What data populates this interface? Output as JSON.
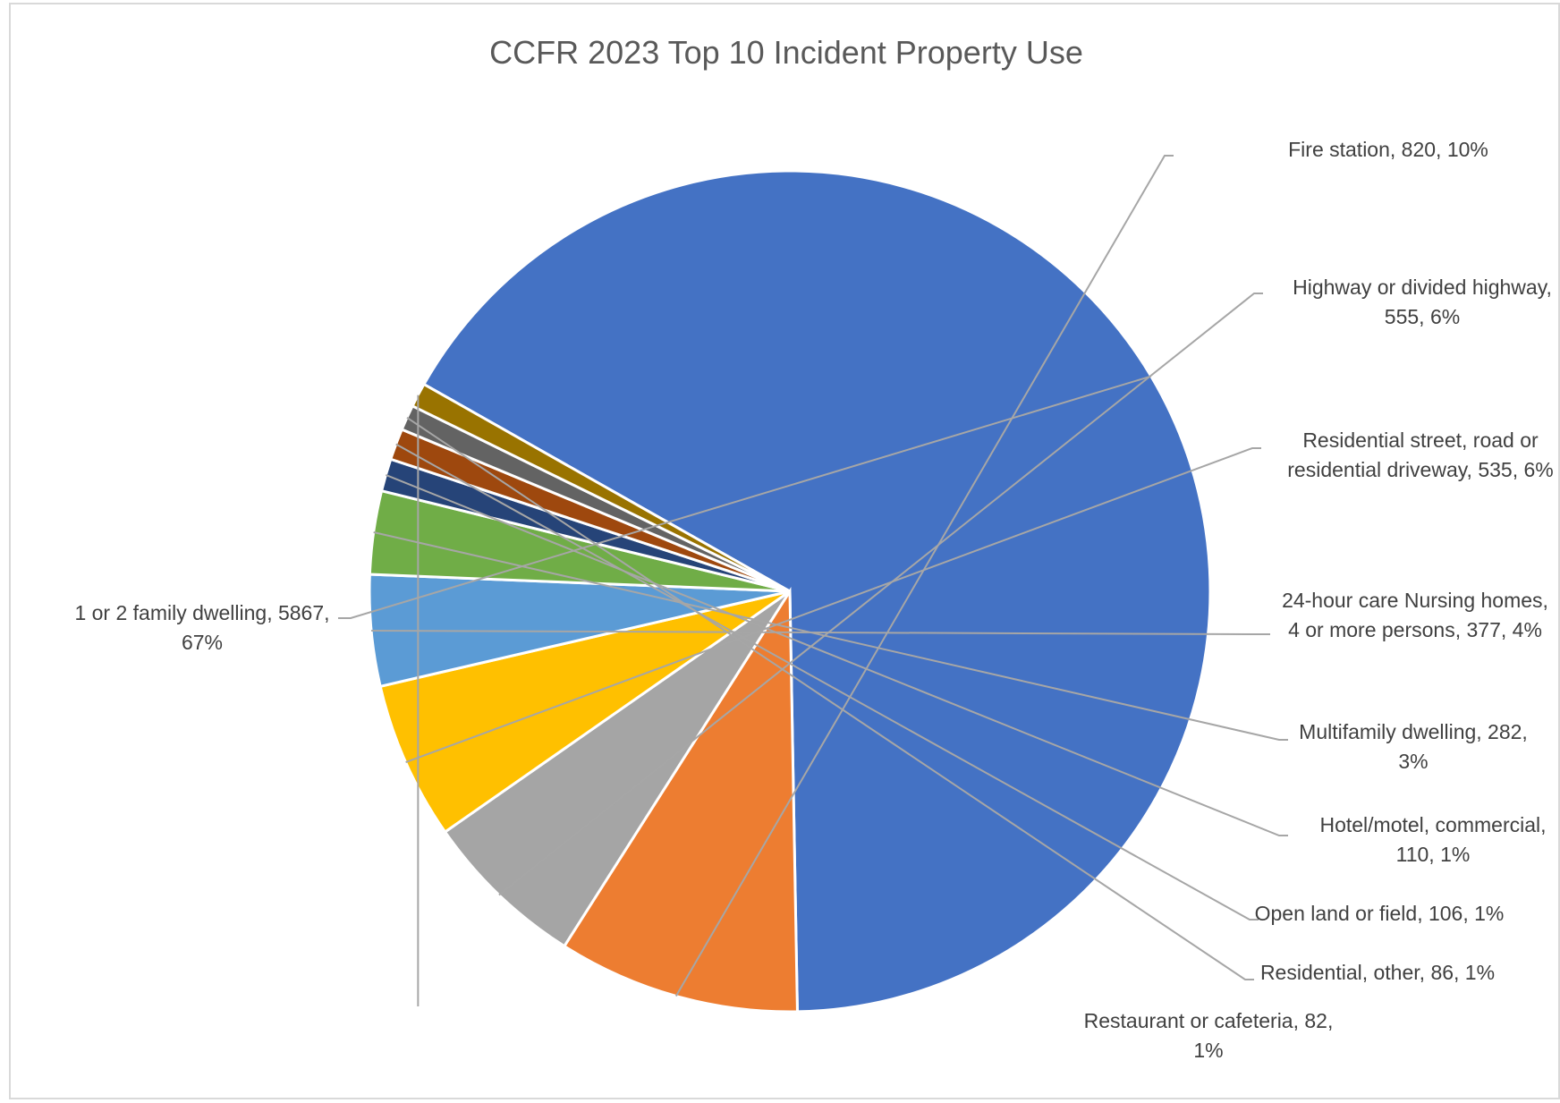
{
  "chart_data": {
    "type": "pie",
    "title": "CCFR 2023 Top 10 Incident Property Use",
    "legend": "none",
    "slices": [
      {
        "name": "1 or 2 family dwelling",
        "value": 5867,
        "percent": "67%",
        "color": "#4472C4",
        "label_lines": [
          "1 or 2 family dwelling, 5867,",
          "67%"
        ]
      },
      {
        "name": "Fire station",
        "value": 820,
        "percent": "10%",
        "color": "#ED7D31",
        "label_lines": [
          "Fire station, 820, 10%"
        ]
      },
      {
        "name": "Highway or divided highway",
        "value": 555,
        "percent": "6%",
        "color": "#A5A5A5",
        "label_lines": [
          "Highway or divided highway,",
          "555, 6%"
        ]
      },
      {
        "name": "Residential street, road or residential driveway",
        "value": 535,
        "percent": "6%",
        "color": "#FFC000",
        "label_lines": [
          "Residential street, road or",
          "residential driveway, 535, 6%"
        ]
      },
      {
        "name": "24-hour care Nursing homes, 4 or more persons",
        "value": 377,
        "percent": "4%",
        "color": "#5B9BD5",
        "label_lines": [
          "24-hour care Nursing homes,",
          "4 or more persons, 377, 4%"
        ]
      },
      {
        "name": "Multifamily dwelling",
        "value": 282,
        "percent": "3%",
        "color": "#70AD47",
        "label_lines": [
          "Multifamily dwelling, 282,",
          "3%"
        ]
      },
      {
        "name": "Hotel/motel, commercial",
        "value": 110,
        "percent": "1%",
        "color": "#264478",
        "label_lines": [
          "Hotel/motel, commercial,",
          "110, 1%"
        ]
      },
      {
        "name": "Open land or field",
        "value": 106,
        "percent": "1%",
        "color": "#9E480E",
        "label_lines": [
          "Open land or field, 106, 1%"
        ]
      },
      {
        "name": "Residential, other",
        "value": 86,
        "percent": "1%",
        "color": "#636363",
        "label_lines": [
          "Residential, other, 86, 1%"
        ]
      },
      {
        "name": "Restaurant or cafeteria",
        "value": 82,
        "percent": "1%",
        "color": "#997300",
        "label_lines": [
          "Restaurant or cafeteria, 82,",
          "1%"
        ]
      }
    ]
  }
}
